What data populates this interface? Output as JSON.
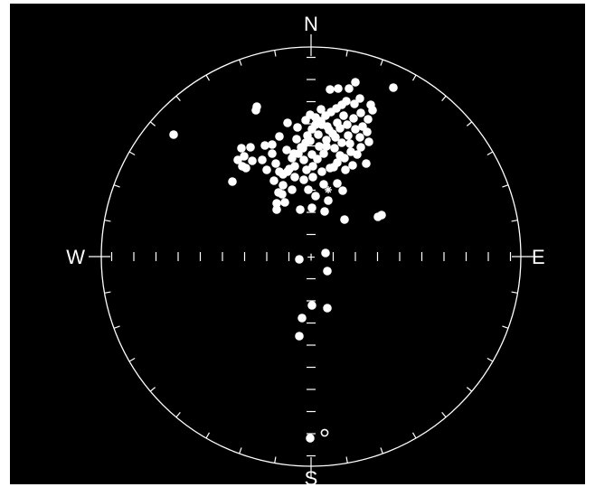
{
  "diagram": {
    "type": "stereonet",
    "labels": {
      "north": "N",
      "south": "S",
      "east": "E",
      "west": "W"
    },
    "colors": {
      "background": "#000000",
      "net": "#ffffff",
      "points": "#ffffff"
    },
    "center_marker": "+",
    "special_markers": [
      "star",
      "open-circle"
    ],
    "tick_interval_deg": 10
  }
}
